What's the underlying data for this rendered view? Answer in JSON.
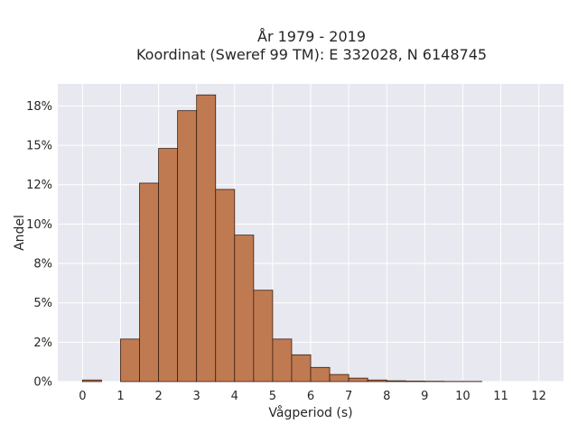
{
  "chart_data": {
    "type": "bar",
    "title_lines": [
      "År 1979 - 2019",
      "Koordinat (Sweref 99 TM): E 332028, N 6148745"
    ],
    "xlabel": "Vågperiod (s)",
    "ylabel": "Andel",
    "xlim": [
      -0.65,
      12.65
    ],
    "ylim": [
      0,
      18.9
    ],
    "x_ticks": [
      0,
      1,
      2,
      3,
      4,
      5,
      6,
      7,
      8,
      9,
      10,
      11,
      12
    ],
    "y_ticks": [
      {
        "value": 0,
        "label": "0%"
      },
      {
        "value": 2.5,
        "label": "2%"
      },
      {
        "value": 5,
        "label": "5%"
      },
      {
        "value": 7.5,
        "label": "8%"
      },
      {
        "value": 10,
        "label": "10%"
      },
      {
        "value": 12.5,
        "label": "12%"
      },
      {
        "value": 15,
        "label": "15%"
      },
      {
        "value": 17.5,
        "label": "18%"
      }
    ],
    "bin_width": 0.5,
    "bins": [
      {
        "start": 0.0,
        "value": 0.1
      },
      {
        "start": 1.0,
        "value": 2.7
      },
      {
        "start": 1.5,
        "value": 12.6
      },
      {
        "start": 2.0,
        "value": 14.8
      },
      {
        "start": 2.5,
        "value": 17.2
      },
      {
        "start": 3.0,
        "value": 18.2
      },
      {
        "start": 3.5,
        "value": 12.2
      },
      {
        "start": 4.0,
        "value": 9.3
      },
      {
        "start": 4.5,
        "value": 5.8
      },
      {
        "start": 5.0,
        "value": 2.7
      },
      {
        "start": 5.5,
        "value": 1.7
      },
      {
        "start": 6.0,
        "value": 0.9
      },
      {
        "start": 6.5,
        "value": 0.45
      },
      {
        "start": 7.0,
        "value": 0.22
      },
      {
        "start": 7.5,
        "value": 0.1
      },
      {
        "start": 8.0,
        "value": 0.05
      },
      {
        "start": 8.5,
        "value": 0.03
      },
      {
        "start": 9.0,
        "value": 0.02
      },
      {
        "start": 9.5,
        "value": 0.01
      },
      {
        "start": 10.0,
        "value": 0.01
      }
    ],
    "grid": true,
    "bar_color": "#c07a52",
    "bar_edge_color": "#3a1f10",
    "plot_background": "#e8e8f0"
  }
}
